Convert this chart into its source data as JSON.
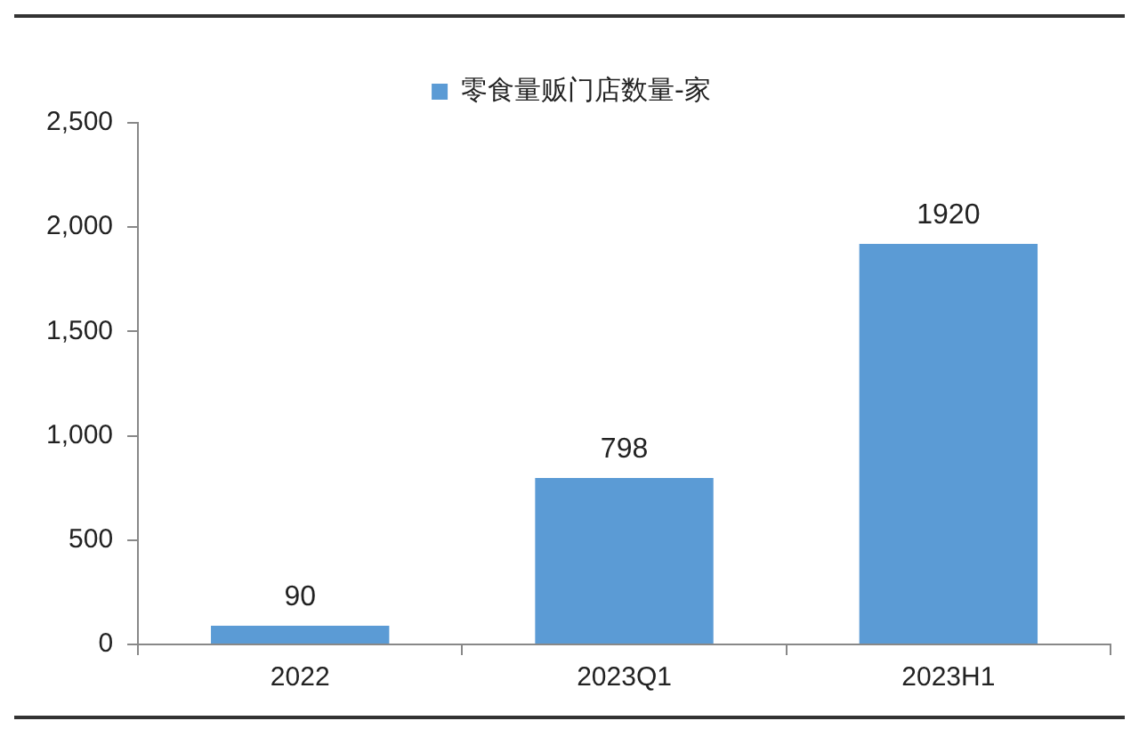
{
  "chart_data": {
    "type": "bar",
    "categories": [
      "2022",
      "2023Q1",
      "2023H1"
    ],
    "series": [
      {
        "name": "零食量贩门店数量-家",
        "color": "#5b9bd5",
        "values": [
          90,
          798,
          1920
        ]
      }
    ],
    "ylim": [
      0,
      2500
    ],
    "yticks": [
      {
        "value": 0,
        "label": "0"
      },
      {
        "value": 500,
        "label": "500"
      },
      {
        "value": 1000,
        "label": "1,000"
      },
      {
        "value": 1500,
        "label": "1,500"
      },
      {
        "value": 2000,
        "label": "2,000"
      },
      {
        "value": 2500,
        "label": "2,500"
      }
    ],
    "grid": false,
    "legend": "top",
    "data_labels": true
  }
}
